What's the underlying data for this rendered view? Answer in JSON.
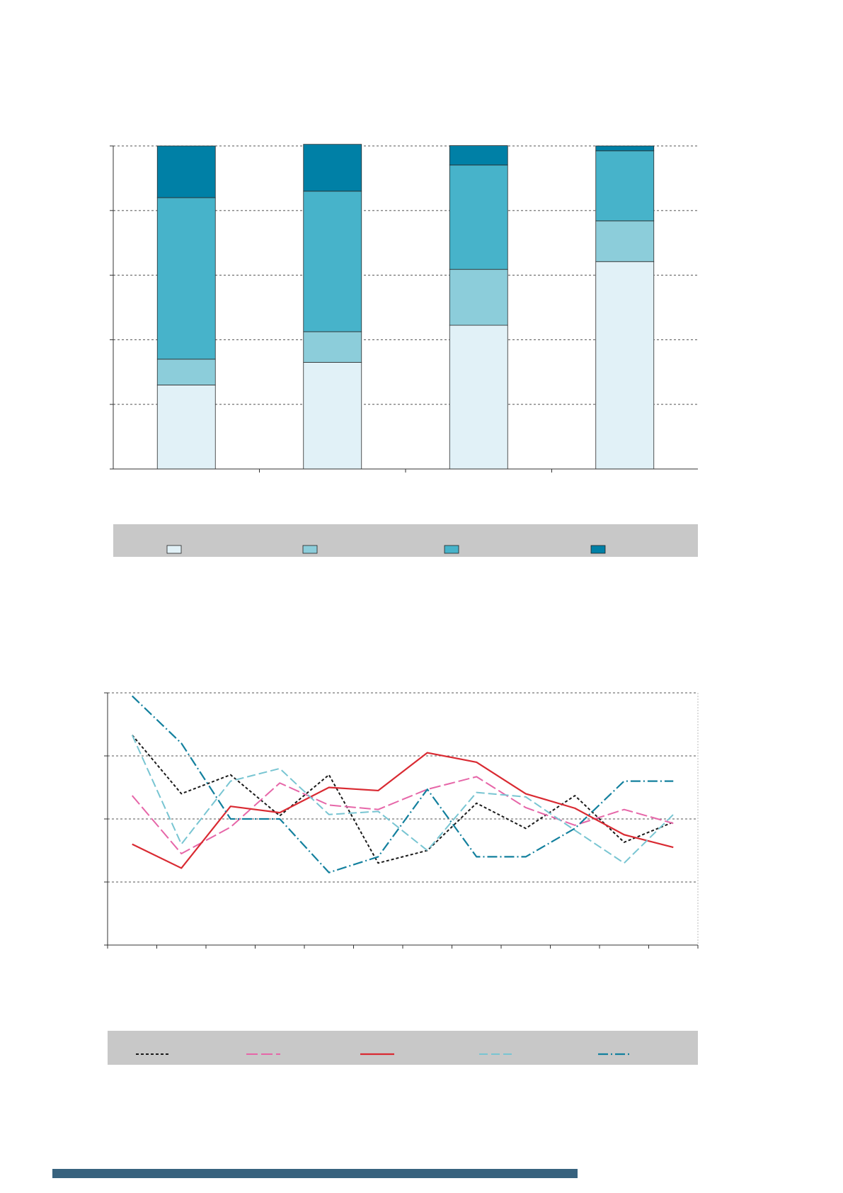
{
  "colors": {
    "stack": [
      "#e1f1f7",
      "#8ccdda",
      "#47b3ca",
      "#0080a6"
    ],
    "lines": [
      "#1a1a1a",
      "#e666a8",
      "#d92a32",
      "#78c5d2",
      "#13809e"
    ],
    "grid": "#555555",
    "legend_bg": "#c8c8c8",
    "footer": "#37627e"
  },
  "chart_data": [
    {
      "type": "bar",
      "stacked": true,
      "ylim": [
        0,
        100
      ],
      "grid": true,
      "legend_placement": "bottom",
      "series": [
        {
          "values": [
            26,
            33,
            44.5,
            64.2
          ]
        },
        {
          "values": [
            8,
            9.5,
            17.3,
            12.6
          ]
        },
        {
          "values": [
            50,
            43.5,
            32.3,
            21.7
          ]
        },
        {
          "values": [
            16,
            14.5,
            6,
            1.5
          ]
        }
      ]
    },
    {
      "type": "line",
      "ylim": [
        0,
        4
      ],
      "grid": true,
      "legend_placement": "bottom",
      "series": [
        {
          "values": [
            3.33,
            2.4,
            2.7,
            2.05,
            2.7,
            1.3,
            1.5,
            2.25,
            1.85,
            2.37,
            1.63,
            1.95
          ]
        },
        {
          "values": [
            2.37,
            1.45,
            1.87,
            2.57,
            2.22,
            2.15,
            2.47,
            2.67,
            2.18,
            1.9,
            2.15,
            1.93
          ]
        },
        {
          "values": [
            1.6,
            1.22,
            2.2,
            2.1,
            2.5,
            2.45,
            3.05,
            2.9,
            2.4,
            2.17,
            1.75,
            1.55
          ]
        },
        {
          "values": [
            3.33,
            1.6,
            2.6,
            2.8,
            2.07,
            2.12,
            1.5,
            2.42,
            2.35,
            1.82,
            1.3,
            2.07
          ]
        },
        {
          "values": [
            3.95,
            3.2,
            2.0,
            2.0,
            1.15,
            1.4,
            2.47,
            1.4,
            1.4,
            1.85,
            2.6,
            2.6
          ]
        }
      ]
    }
  ]
}
